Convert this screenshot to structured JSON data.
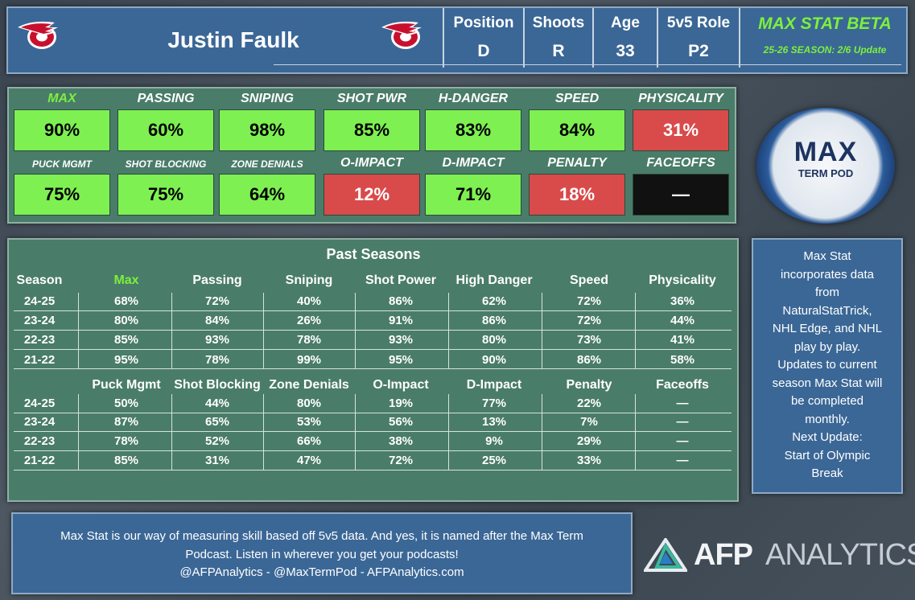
{
  "header": {
    "player_name": "Justin Faulk",
    "fields": [
      {
        "label": "Position",
        "value": "D"
      },
      {
        "label": "Shoots",
        "value": "R"
      },
      {
        "label": "Age",
        "value": "33"
      },
      {
        "label": "5v5 Role",
        "value": "P2"
      }
    ],
    "brand_title": "MAX STAT BETA",
    "brand_subtitle": "25-26 SEASON: 2/6 Update"
  },
  "colors": {
    "good": "#7ef052",
    "bad": "#d94a4a",
    "none": "#111111",
    "accent": "#7cf03c"
  },
  "current_stats": {
    "row1": [
      {
        "label": "MAX",
        "value": "90%",
        "rating": "good"
      },
      {
        "label": "PASSING",
        "value": "60%",
        "rating": "good"
      },
      {
        "label": "SNIPING",
        "value": "98%",
        "rating": "good"
      },
      {
        "label": "SHOT PWR",
        "value": "85%",
        "rating": "good"
      },
      {
        "label": "H-DANGER",
        "value": "83%",
        "rating": "good"
      },
      {
        "label": "SPEED",
        "value": "84%",
        "rating": "good"
      },
      {
        "label": "PHYSICALITY",
        "value": "31%",
        "rating": "bad"
      }
    ],
    "row2": [
      {
        "label": "PUCK MGMT",
        "value": "75%",
        "rating": "good"
      },
      {
        "label": "SHOT BLOCKING",
        "value": "75%",
        "rating": "good"
      },
      {
        "label": "ZONE DENIALS",
        "value": "64%",
        "rating": "good"
      },
      {
        "label": "O-IMPACT",
        "value": "12%",
        "rating": "bad"
      },
      {
        "label": "D-IMPACT",
        "value": "71%",
        "rating": "good"
      },
      {
        "label": "PENALTY",
        "value": "18%",
        "rating": "bad"
      },
      {
        "label": "FACEOFFS",
        "value": "—",
        "rating": "none"
      }
    ]
  },
  "pod_logo": {
    "main": "MAX",
    "sub": "TERM POD"
  },
  "past_seasons": {
    "title": "Past Seasons",
    "table1": {
      "headers": [
        "Season",
        "Max",
        "Passing",
        "Sniping",
        "Shot Power",
        "High Danger",
        "Speed",
        "Physicality"
      ],
      "rows": [
        [
          "24-25",
          "68%",
          "72%",
          "40%",
          "86%",
          "62%",
          "72%",
          "36%"
        ],
        [
          "23-24",
          "80%",
          "84%",
          "26%",
          "91%",
          "86%",
          "72%",
          "44%"
        ],
        [
          "22-23",
          "85%",
          "93%",
          "78%",
          "93%",
          "80%",
          "73%",
          "41%"
        ],
        [
          "21-22",
          "95%",
          "78%",
          "99%",
          "95%",
          "90%",
          "86%",
          "58%"
        ]
      ]
    },
    "table2": {
      "headers": [
        "",
        "Puck Mgmt",
        "Shot Blocking",
        "Zone Denials",
        "O-Impact",
        "D-Impact",
        "Penalty",
        "Faceoffs"
      ],
      "rows": [
        [
          "24-25",
          "50%",
          "44%",
          "80%",
          "19%",
          "77%",
          "22%",
          "—"
        ],
        [
          "23-24",
          "87%",
          "65%",
          "53%",
          "56%",
          "13%",
          "7%",
          "—"
        ],
        [
          "22-23",
          "78%",
          "52%",
          "66%",
          "38%",
          "9%",
          "29%",
          "—"
        ],
        [
          "21-22",
          "85%",
          "31%",
          "47%",
          "72%",
          "25%",
          "33%",
          "—"
        ]
      ]
    }
  },
  "note": {
    "lines": [
      "Max Stat",
      "incorporates data",
      "from",
      "NaturalStatTrick,",
      "NHL Edge, and NHL",
      "play by play.",
      "Updates to current",
      "season Max Stat will",
      "be completed",
      "monthly.",
      "Next Update:",
      "Start of Olympic",
      "Break"
    ]
  },
  "footer": {
    "lines": [
      "Max Stat is our way of measuring skill based off 5v5 data. And yes, it is named after the Max Term",
      "Podcast. Listen in wherever you get your podcasts!",
      "@AFPAnalytics - @MaxTermPod - AFPAnalytics.com"
    ]
  },
  "afp_logo": {
    "strong": "AFP",
    "light": "ANALYTICS"
  }
}
